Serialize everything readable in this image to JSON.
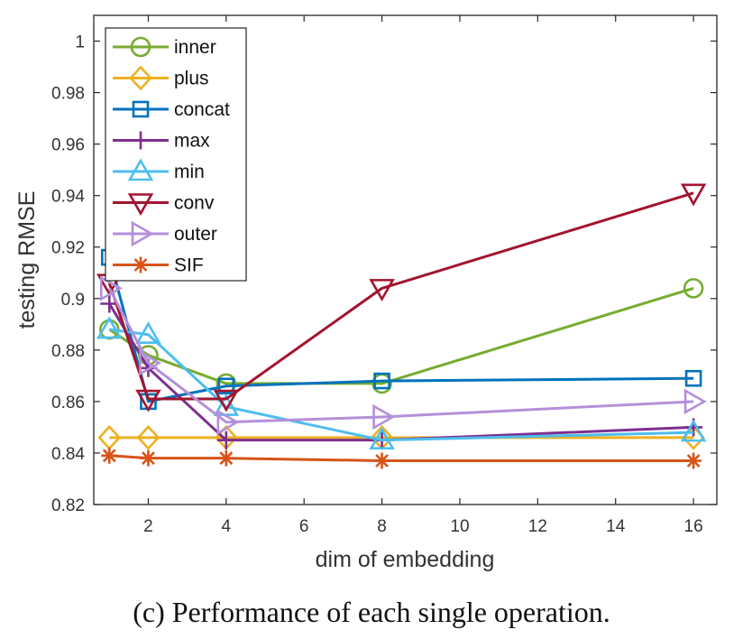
{
  "chart_data": {
    "type": "line",
    "title": "",
    "xlabel": "dim of embedding",
    "ylabel": "testing RMSE",
    "xlim": [
      0.6,
      16.6
    ],
    "ylim": [
      0.82,
      1.01
    ],
    "x": [
      1,
      2,
      4,
      8,
      16
    ],
    "xticks": [
      2,
      4,
      6,
      8,
      10,
      12,
      14,
      16
    ],
    "xtick_labels": [
      "2",
      "4",
      "6",
      "8",
      "10",
      "12",
      "14",
      "16"
    ],
    "yticks": [
      0.82,
      0.84,
      0.86,
      0.88,
      0.9,
      0.92,
      0.94,
      0.96,
      0.98,
      1.0
    ],
    "ytick_labels": [
      "0.82",
      "0.84",
      "0.86",
      "0.88",
      "0.9",
      "0.92",
      "0.94",
      "0.96",
      "0.98",
      "1"
    ],
    "grid": false,
    "legend_position": "top-left",
    "series": [
      {
        "name": "inner",
        "marker": "circle",
        "color": "#77AC30",
        "values": [
          0.888,
          0.878,
          0.867,
          0.867,
          0.904
        ]
      },
      {
        "name": "plus",
        "marker": "diamond",
        "color": "#EDB120",
        "values": [
          0.846,
          0.846,
          0.846,
          0.846,
          0.846
        ]
      },
      {
        "name": "concat",
        "marker": "square",
        "color": "#0072BD",
        "values": [
          0.916,
          0.86,
          0.866,
          0.868,
          0.869
        ]
      },
      {
        "name": "max",
        "marker": "plus",
        "color": "#7E2F8E",
        "values": [
          0.898,
          0.873,
          0.845,
          0.845,
          0.85
        ]
      },
      {
        "name": "min",
        "marker": "triangle-up",
        "color": "#4DBEEE",
        "values": [
          0.888,
          0.886,
          0.858,
          0.845,
          0.848
        ]
      },
      {
        "name": "conv",
        "marker": "triangle-down",
        "color": "#A2142F",
        "values": [
          0.906,
          0.861,
          0.861,
          0.904,
          0.941
        ]
      },
      {
        "name": "outer",
        "marker": "triangle-right",
        "color": "#B48FDA",
        "values": [
          0.904,
          0.875,
          0.852,
          0.854,
          0.86
        ]
      },
      {
        "name": "SIF",
        "marker": "asterisk",
        "color": "#D95319",
        "values": [
          0.839,
          0.838,
          0.838,
          0.837,
          0.837
        ]
      }
    ]
  },
  "caption": "(c)  Performance of each single operation."
}
